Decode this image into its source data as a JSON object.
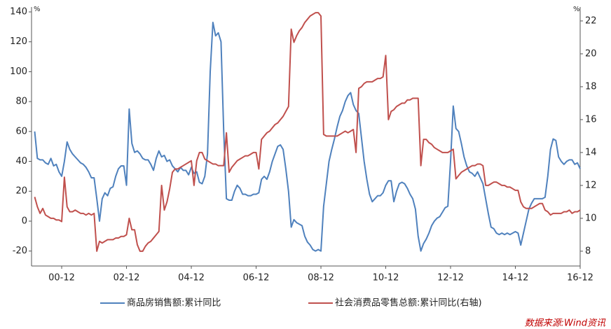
{
  "chart_data": {
    "type": "line",
    "ylabel": "%",
    "y2label": "%",
    "source": "数据来源:Wind资讯",
    "legend": "bottom",
    "x": [
      "00-02",
      "00-03",
      "00-04",
      "00-05",
      "00-06",
      "00-07",
      "00-08",
      "00-09",
      "00-10",
      "00-11",
      "00-12",
      "01-01",
      "01-02",
      "01-03",
      "01-04",
      "01-05",
      "01-06",
      "01-07",
      "01-08",
      "01-09",
      "01-10",
      "01-11",
      "01-12",
      "02-01",
      "02-02",
      "02-03",
      "02-04",
      "02-05",
      "02-06",
      "02-07",
      "02-08",
      "02-09",
      "02-10",
      "02-11",
      "02-12",
      "03-01",
      "03-02",
      "03-03",
      "03-04",
      "03-05",
      "03-06",
      "03-07",
      "03-08",
      "03-09",
      "03-10",
      "03-11",
      "03-12",
      "04-01",
      "04-02",
      "04-03",
      "04-04",
      "04-05",
      "04-06",
      "04-07",
      "04-08",
      "04-09",
      "04-10",
      "04-11",
      "04-12",
      "05-01",
      "05-02",
      "05-03",
      "05-04",
      "05-05",
      "05-06",
      "05-07",
      "05-08",
      "05-09",
      "05-10",
      "05-11",
      "05-12",
      "06-01",
      "06-02",
      "06-03",
      "06-04",
      "06-05",
      "06-06",
      "06-07",
      "06-08",
      "06-09",
      "06-10",
      "06-11",
      "06-12",
      "07-01",
      "07-02",
      "07-03",
      "07-04",
      "07-05",
      "07-06",
      "07-07",
      "07-08",
      "07-09",
      "07-10",
      "07-11",
      "07-12",
      "08-01",
      "08-02",
      "08-03",
      "08-04",
      "08-05",
      "08-06",
      "08-07",
      "08-08",
      "08-09",
      "08-10",
      "08-11",
      "08-12",
      "09-01",
      "09-02",
      "09-03",
      "09-04",
      "09-05",
      "09-06",
      "09-07",
      "09-08",
      "09-09",
      "09-10",
      "09-11",
      "09-12",
      "10-01",
      "10-02",
      "10-03",
      "10-04",
      "10-05",
      "10-06",
      "10-07",
      "10-08",
      "10-09",
      "10-10",
      "10-11",
      "10-12",
      "11-01",
      "11-02",
      "11-03",
      "11-04",
      "11-05",
      "11-06",
      "11-07",
      "11-08",
      "11-09",
      "11-10",
      "11-11",
      "11-12",
      "12-01",
      "12-02",
      "12-03",
      "12-04",
      "12-05",
      "12-06",
      "12-07",
      "12-08",
      "12-09",
      "12-10",
      "12-11",
      "12-12",
      "13-01",
      "13-02",
      "13-03",
      "13-04",
      "13-05",
      "13-06",
      "13-07",
      "13-08",
      "13-09",
      "13-10",
      "13-11",
      "13-12",
      "14-01",
      "14-02",
      "14-03",
      "14-04",
      "14-05",
      "14-06",
      "14-07",
      "14-08",
      "14-09",
      "14-10",
      "14-11",
      "14-12",
      "15-01",
      "15-02",
      "15-03",
      "15-04",
      "15-05",
      "15-06",
      "15-07",
      "15-08",
      "15-09",
      "15-10",
      "15-11",
      "15-12",
      "16-01",
      "16-02",
      "16-03",
      "16-04",
      "16-05",
      "16-06",
      "16-07",
      "16-08",
      "16-09",
      "16-10",
      "16-11",
      "16-12"
    ],
    "xticks": [
      "00-12",
      "02-12",
      "04-12",
      "06-12",
      "08-12",
      "10-12",
      "12-12",
      "14-12",
      "16-12"
    ],
    "ylim": [
      -30,
      140
    ],
    "yticks": [
      -20,
      0,
      20,
      40,
      60,
      80,
      100,
      120,
      140
    ],
    "y2lim": [
      7.1,
      22.55
    ],
    "y2ticks": [
      8,
      10,
      12,
      14,
      16,
      18,
      20,
      22
    ],
    "series": [
      {
        "name": "商品房销售额:累计同比",
        "color": "#4f81bd",
        "values": [
          60,
          42,
          41,
          41,
          39,
          38,
          42,
          37,
          38,
          33,
          30,
          40,
          53,
          48,
          45,
          43,
          41,
          39,
          38,
          36,
          33,
          29,
          29,
          15,
          0,
          15,
          19,
          17,
          22,
          23,
          30,
          35,
          37,
          37,
          24,
          75,
          52,
          46,
          47,
          45,
          42,
          41,
          41,
          38,
          34,
          42,
          47,
          43,
          44,
          40,
          41,
          37,
          35,
          33,
          36,
          34,
          34,
          31,
          36,
          32,
          33,
          26,
          25,
          30,
          45,
          100,
          133,
          124,
          126,
          120,
          60,
          15,
          14,
          14,
          20,
          24,
          22,
          18,
          18,
          17,
          17,
          18,
          18,
          19,
          28,
          30,
          28,
          33,
          40,
          45,
          50,
          51,
          48,
          35,
          20,
          -4,
          1,
          -1,
          -2,
          -3,
          -10,
          -14,
          -16,
          -19,
          -20,
          -19,
          -20,
          10,
          25,
          40,
          48,
          55,
          63,
          70,
          74,
          80,
          84,
          86,
          78,
          74,
          72,
          56,
          40,
          28,
          18,
          13,
          15,
          17,
          17,
          19,
          24,
          27,
          27,
          13,
          20,
          25,
          26,
          25,
          22,
          18,
          15,
          8,
          -10,
          -20,
          -15,
          -12,
          -8,
          -3,
          0,
          2,
          3,
          6,
          9,
          10,
          40,
          77,
          62,
          60,
          52,
          43,
          37,
          33,
          32,
          30,
          33,
          29,
          25,
          15,
          5,
          -4,
          -5,
          -8,
          -9,
          -8,
          -9,
          -8,
          -9,
          -8,
          -7,
          -8,
          -16,
          -8,
          0,
          8,
          12,
          15,
          15,
          15,
          15,
          16,
          30,
          48,
          55,
          54,
          43,
          40,
          38,
          40,
          41,
          41,
          38,
          39,
          35
        ]
      },
      {
        "name": "社会消费品零售总额:累计同比(右轴)",
        "color": "#c0504d",
        "axis": "y2",
        "values": [
          11.3,
          10.7,
          10.3,
          10.6,
          10.2,
          10.1,
          10.0,
          10.0,
          9.9,
          9.9,
          9.8,
          12.5,
          10.7,
          10.4,
          10.4,
          10.5,
          10.4,
          10.3,
          10.3,
          10.2,
          10.3,
          10.2,
          10.3,
          8.0,
          8.6,
          8.5,
          8.6,
          8.7,
          8.7,
          8.7,
          8.8,
          8.8,
          8.9,
          8.9,
          9.0,
          10.0,
          9.3,
          9.3,
          8.4,
          8.0,
          8.0,
          8.3,
          8.5,
          8.6,
          8.8,
          9.0,
          9.2,
          12.0,
          10.5,
          11.0,
          11.8,
          12.8,
          13.0,
          13.0,
          13.1,
          13.2,
          13.3,
          13.4,
          13.5,
          12.0,
          13.5,
          14.0,
          14.0,
          13.6,
          13.5,
          13.4,
          13.3,
          13.3,
          13.2,
          13.2,
          13.2,
          15.2,
          12.8,
          13.1,
          13.3,
          13.5,
          13.6,
          13.7,
          13.8,
          13.8,
          13.9,
          14.0,
          14.0,
          13.0,
          14.8,
          15.0,
          15.2,
          15.3,
          15.5,
          15.7,
          15.8,
          16.0,
          16.2,
          16.5,
          16.8,
          21.5,
          20.7,
          21.1,
          21.4,
          21.6,
          21.9,
          22.1,
          22.3,
          22.4,
          22.5,
          22.5,
          22.3,
          15.1,
          15.0,
          15.0,
          15.0,
          15.0,
          15.0,
          15.1,
          15.2,
          15.3,
          15.2,
          15.3,
          15.4,
          14.0,
          17.9,
          18.0,
          18.2,
          18.3,
          18.3,
          18.3,
          18.4,
          18.5,
          18.5,
          18.6,
          19.9,
          16.0,
          16.5,
          16.6,
          16.8,
          16.9,
          17.0,
          17.0,
          17.2,
          17.2,
          17.3,
          17.3,
          17.3,
          13.2,
          14.8,
          14.8,
          14.6,
          14.5,
          14.3,
          14.2,
          14.1,
          14.0,
          14.0,
          14.0,
          14.1,
          14.2,
          12.4,
          12.6,
          12.8,
          12.9,
          13.0,
          13.1,
          13.2,
          13.2,
          13.3,
          13.3,
          13.2,
          12.0,
          12.0,
          12.1,
          12.2,
          12.2,
          12.1,
          12.0,
          12.0,
          11.9,
          11.9,
          11.8,
          11.7,
          11.7,
          11.0,
          10.7,
          10.6,
          10.6,
          10.6,
          10.7,
          10.8,
          10.9,
          10.9,
          10.5,
          10.4,
          10.2,
          10.3,
          10.3,
          10.3,
          10.3,
          10.4,
          10.4,
          10.5,
          10.3,
          10.4,
          10.4,
          10.5
        ]
      }
    ]
  }
}
